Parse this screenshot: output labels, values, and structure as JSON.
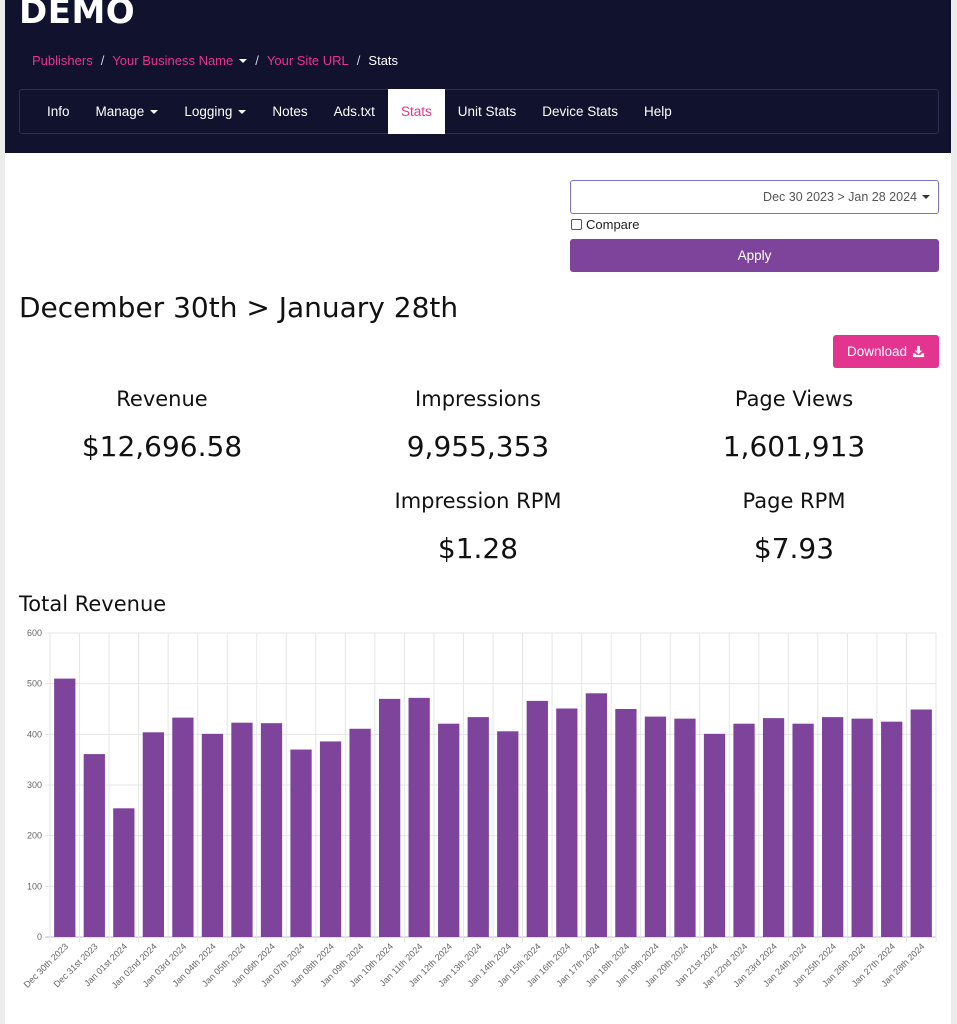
{
  "header": {
    "brand": "DEMO",
    "breadcrumb": {
      "publishers": "Publishers",
      "business": "Your Business Name",
      "site": "Your Site URL",
      "current": "Stats"
    },
    "nav": {
      "info": "Info",
      "manage": "Manage",
      "logging": "Logging",
      "notes": "Notes",
      "ads_txt": "Ads.txt",
      "stats": "Stats",
      "unit_stats": "Unit Stats",
      "device_stats": "Device Stats",
      "help": "Help"
    }
  },
  "controls": {
    "date_range": "Dec 30 2023 > Jan 28 2024",
    "compare_label": "Compare",
    "apply_label": "Apply",
    "download_label": "Download"
  },
  "range_title": "December 30th > January 28th",
  "stats": {
    "revenue": {
      "label": "Revenue",
      "value": "$12,696.58"
    },
    "impressions": {
      "label": "Impressions",
      "value": "9,955,353"
    },
    "page_views": {
      "label": "Page Views",
      "value": "1,601,913"
    },
    "impression_rpm": {
      "label": "Impression RPM",
      "value": "$1.28"
    },
    "page_rpm": {
      "label": "Page RPM",
      "value": "$7.93"
    }
  },
  "colors": {
    "header_bg": "#11122e",
    "accent_pink": "#e3348f",
    "bar_purple": "#7e449b"
  },
  "chart_data": {
    "type": "bar",
    "title": "Total Revenue",
    "xlabel": "",
    "ylabel": "",
    "ylim": [
      0,
      600
    ],
    "yticks": [
      0,
      100,
      200,
      300,
      400,
      500,
      600
    ],
    "grid": true,
    "categories": [
      "Dec 30th 2023",
      "Dec 31st 2023",
      "Jan 01st 2024",
      "Jan 02nd 2024",
      "Jan 03rd 2024",
      "Jan 04th 2024",
      "Jan 05th 2024",
      "Jan 06th 2024",
      "Jan 07th 2024",
      "Jan 08th 2024",
      "Jan 09th 2024",
      "Jan 10th 2024",
      "Jan 11th 2024",
      "Jan 12th 2024",
      "Jan 13th 2024",
      "Jan 14th 2024",
      "Jan 15th 2024",
      "Jan 16th 2024",
      "Jan 17th 2024",
      "Jan 18th 2024",
      "Jan 19th 2024",
      "Jan 20th 2024",
      "Jan 21st 2024",
      "Jan 22nd 2024",
      "Jan 23rd 2024",
      "Jan 24th 2024",
      "Jan 25th 2024",
      "Jan 26th 2024",
      "Jan 27th 2024",
      "Jan 28th 2024"
    ],
    "values": [
      510,
      361,
      254,
      404,
      433,
      401,
      423,
      422,
      370,
      386,
      411,
      470,
      472,
      421,
      434,
      406,
      466,
      451,
      481,
      450,
      435,
      431,
      401,
      421,
      432,
      421,
      434,
      431,
      425,
      449
    ]
  }
}
